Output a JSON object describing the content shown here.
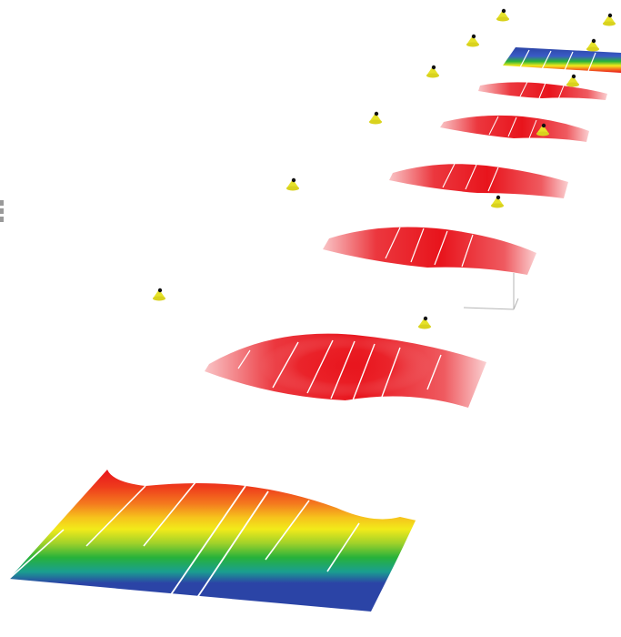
{
  "scene": {
    "description_free": true,
    "colors": {
      "background": "#ffffff",
      "band_red": "#e8141c",
      "band_orange": "#f47a1e",
      "band_yellow": "#f6e61a",
      "band_green": "#27b23a",
      "band_blue": "#2b44a6",
      "marker_yellow": "#e6e22a",
      "marker_dot": "#111111",
      "stripe": "#ffffff",
      "axis_gray": "#b5b5b5"
    },
    "icons": {
      "marker": "yellow-cone-marker-icon",
      "side_glyph": "gray-grid-glyph-icon"
    }
  }
}
